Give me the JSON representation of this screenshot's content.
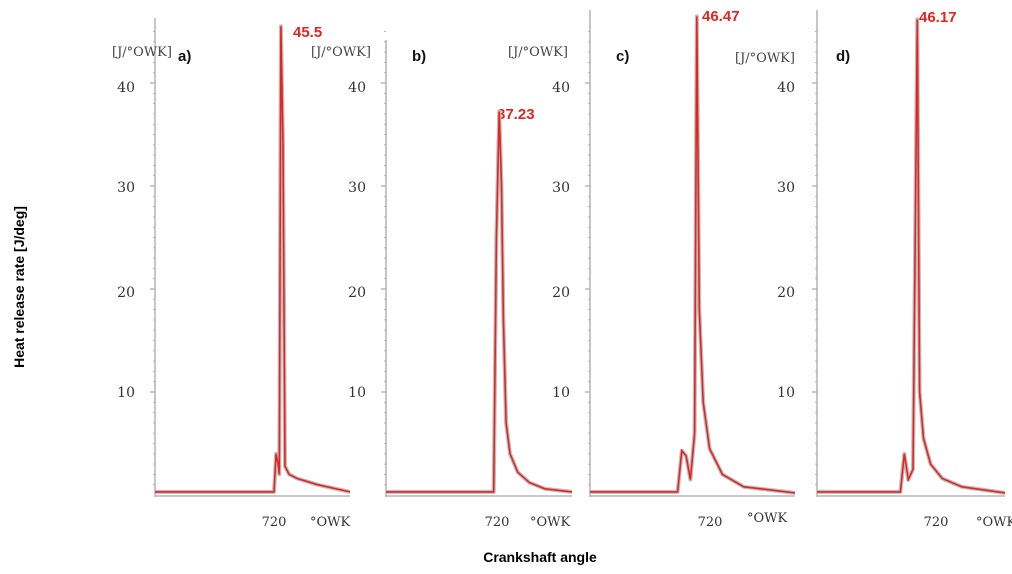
{
  "colors": {
    "curve": "#e52421",
    "axis": "#a8a8a8",
    "shadow": "#bdbdbd",
    "peak_label": "#e52421"
  },
  "figure": {
    "y_title": "Heat release rate [J/deg]",
    "x_title": "Crankshaft angle"
  },
  "chart_data": [
    {
      "type": "line",
      "tag": "a)",
      "y_unit": "[J/°OWK]",
      "x_unit": "°OWK",
      "yticks": [
        "10",
        "20",
        "30",
        "40"
      ],
      "xtick": "720",
      "ylim": [
        0,
        47
      ],
      "peak": {
        "x": 721,
        "y": 45.5,
        "label": "45.5"
      },
      "series": [
        {
          "x": [
            600,
            719.3,
            719.8,
            720.3,
            720.6,
            721.0,
            721.5,
            722.0,
            723,
            725,
            730,
            738
          ],
          "y": [
            0.3,
            0.3,
            4.0,
            3.0,
            2.0,
            45.5,
            34.0,
            2.8,
            2.0,
            1.6,
            1.0,
            0.3
          ]
        }
      ]
    },
    {
      "type": "line",
      "tag": "b)",
      "y_unit": "[J/°OWK]",
      "x_unit": "°OWK",
      "yticks": [
        "10",
        "20",
        "30",
        "40"
      ],
      "xtick": "720",
      "ylim": [
        0,
        47
      ],
      "peak": {
        "x": 719.2,
        "y": 37.23,
        "label": "37.23"
      },
      "series": [
        {
          "x": [
            600,
            717.8,
            718.5,
            719.2,
            719.8,
            720.3,
            721,
            722,
            724,
            727,
            731,
            738
          ],
          "y": [
            0.3,
            0.3,
            25.0,
            37.23,
            30.0,
            17.0,
            7.0,
            4.0,
            2.2,
            1.2,
            0.6,
            0.3
          ]
        }
      ]
    },
    {
      "type": "line",
      "tag": "c)",
      "y_unit": "[J/°OWK]",
      "x_unit": "°OWK",
      "yticks": [
        "10",
        "20",
        "30",
        "40"
      ],
      "xtick": "720",
      "ylim": [
        0,
        47
      ],
      "peak": {
        "x": 715.0,
        "y": 46.47,
        "label": "46.47"
      },
      "series": [
        {
          "x": [
            600,
            710.5,
            711.5,
            712.5,
            713.5,
            714.5,
            715.0,
            715.6,
            716.5,
            718,
            721,
            726,
            738
          ],
          "y": [
            0.3,
            0.3,
            4.3,
            3.8,
            1.5,
            6.0,
            46.47,
            18.0,
            9.0,
            4.5,
            2.0,
            0.8,
            0.2
          ]
        }
      ]
    },
    {
      "type": "line",
      "tag": "d)",
      "y_unit": "[J/°OWK]",
      "x_unit": "°OWK",
      "yticks": [
        "10",
        "20",
        "30",
        "40"
      ],
      "xtick": "720",
      "ylim": [
        0,
        47
      ],
      "peak": {
        "x": 715.6,
        "y": 46.17,
        "label": "46.17"
      },
      "series": [
        {
          "x": [
            600,
            711.3,
            712.3,
            713.3,
            714.5,
            715.6,
            716.2,
            717.2,
            719,
            722,
            727,
            738
          ],
          "y": [
            0.3,
            0.3,
            4.0,
            1.5,
            2.5,
            46.17,
            10.0,
            5.5,
            3.0,
            1.6,
            0.8,
            0.2
          ]
        }
      ]
    }
  ]
}
